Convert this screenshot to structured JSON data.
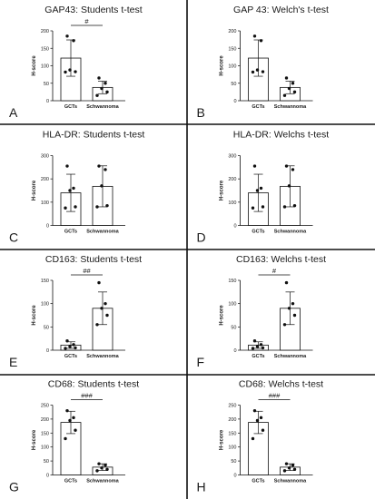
{
  "chart_data": [
    {
      "type": "bar",
      "panel_label": "A",
      "title": "GAP43: Students t-test",
      "ylabel": "H-score",
      "categories": [
        "GCTs",
        "Schwannoma"
      ],
      "ylim": [
        0,
        200
      ],
      "yticks": [
        0,
        50,
        100,
        150,
        200
      ],
      "series": [
        {
          "values": [
            122,
            38
          ],
          "errors": [
            52,
            18
          ],
          "points": [
            [
              185,
              172,
              88,
              83,
              82
            ],
            [
              65,
              50,
              35,
              25,
              15
            ]
          ]
        }
      ],
      "significance": "#"
    },
    {
      "type": "bar",
      "panel_label": "B",
      "title": "GAP 43: Welch's t-test",
      "ylabel": "H-score",
      "categories": [
        "GCTs",
        "Schwannoma"
      ],
      "ylim": [
        0,
        200
      ],
      "yticks": [
        0,
        50,
        100,
        150,
        200
      ],
      "series": [
        {
          "values": [
            122,
            38
          ],
          "errors": [
            52,
            18
          ],
          "points": [
            [
              185,
              172,
              88,
              83,
              82
            ],
            [
              65,
              50,
              35,
              25,
              15
            ]
          ]
        }
      ],
      "significance": ""
    },
    {
      "type": "bar",
      "panel_label": "C",
      "title": "HLA-DR: Students t-test",
      "ylabel": "H-score",
      "categories": [
        "GCTs",
        "Schwannoma"
      ],
      "ylim": [
        0,
        300
      ],
      "yticks": [
        0,
        100,
        200,
        300
      ],
      "series": [
        {
          "values": [
            140,
            168
          ],
          "errors": [
            80,
            88
          ],
          "points": [
            [
              255,
              160,
              150,
              80,
              75
            ],
            [
              255,
              240,
              170,
              85,
              80
            ]
          ]
        }
      ],
      "significance": ""
    },
    {
      "type": "bar",
      "panel_label": "D",
      "title": "HLA-DR: Welchs t-test",
      "ylabel": "H-score",
      "categories": [
        "GCTs",
        "Schwannoma"
      ],
      "ylim": [
        0,
        300
      ],
      "yticks": [
        0,
        100,
        200,
        300
      ],
      "series": [
        {
          "values": [
            140,
            168
          ],
          "errors": [
            80,
            88
          ],
          "points": [
            [
              255,
              160,
              150,
              80,
              75
            ],
            [
              255,
              240,
              170,
              85,
              80
            ]
          ]
        }
      ],
      "significance": ""
    },
    {
      "type": "bar",
      "panel_label": "E",
      "title": "CD163: Students t-test",
      "ylabel": "H-score",
      "categories": [
        "GCTs",
        "Schwannoma"
      ],
      "ylim": [
        0,
        150
      ],
      "yticks": [
        0,
        50,
        100,
        150
      ],
      "series": [
        {
          "values": [
            11,
            90
          ],
          "errors": [
            7,
            35
          ],
          "points": [
            [
              20,
              12,
              8,
              5,
              4
            ],
            [
              145,
              100,
              90,
              75,
              55
            ]
          ]
        }
      ],
      "significance": "##"
    },
    {
      "type": "bar",
      "panel_label": "F",
      "title": "CD163: Welchs t-test",
      "ylabel": "H-score",
      "categories": [
        "GCTs",
        "Schwannoma"
      ],
      "ylim": [
        0,
        150
      ],
      "yticks": [
        0,
        50,
        100,
        150
      ],
      "series": [
        {
          "values": [
            11,
            90
          ],
          "errors": [
            7,
            35
          ],
          "points": [
            [
              20,
              12,
              8,
              5,
              4
            ],
            [
              145,
              100,
              90,
              75,
              55
            ]
          ]
        }
      ],
      "significance": "#"
    },
    {
      "type": "bar",
      "panel_label": "G",
      "title": "CD68: Students t-test",
      "ylabel": "H-score",
      "categories": [
        "GCTs",
        "Schwannoma"
      ],
      "ylim": [
        0,
        250
      ],
      "yticks": [
        0,
        50,
        100,
        150,
        200,
        250
      ],
      "series": [
        {
          "values": [
            188,
            28
          ],
          "errors": [
            40,
            12
          ],
          "points": [
            [
              230,
              205,
              195,
              160,
              130
            ],
            [
              40,
              35,
              25,
              20,
              15
            ]
          ]
        }
      ],
      "significance": "###"
    },
    {
      "type": "bar",
      "panel_label": "H",
      "title": "CD68: Welchs t-test",
      "ylabel": "H-score",
      "categories": [
        "GCTs",
        "Schwannoma"
      ],
      "ylim": [
        0,
        250
      ],
      "yticks": [
        0,
        50,
        100,
        150,
        200,
        250
      ],
      "series": [
        {
          "values": [
            188,
            28
          ],
          "errors": [
            40,
            12
          ],
          "points": [
            [
              230,
              205,
              195,
              160,
              130
            ],
            [
              40,
              35,
              25,
              20,
              15
            ]
          ]
        }
      ],
      "significance": "###"
    }
  ]
}
